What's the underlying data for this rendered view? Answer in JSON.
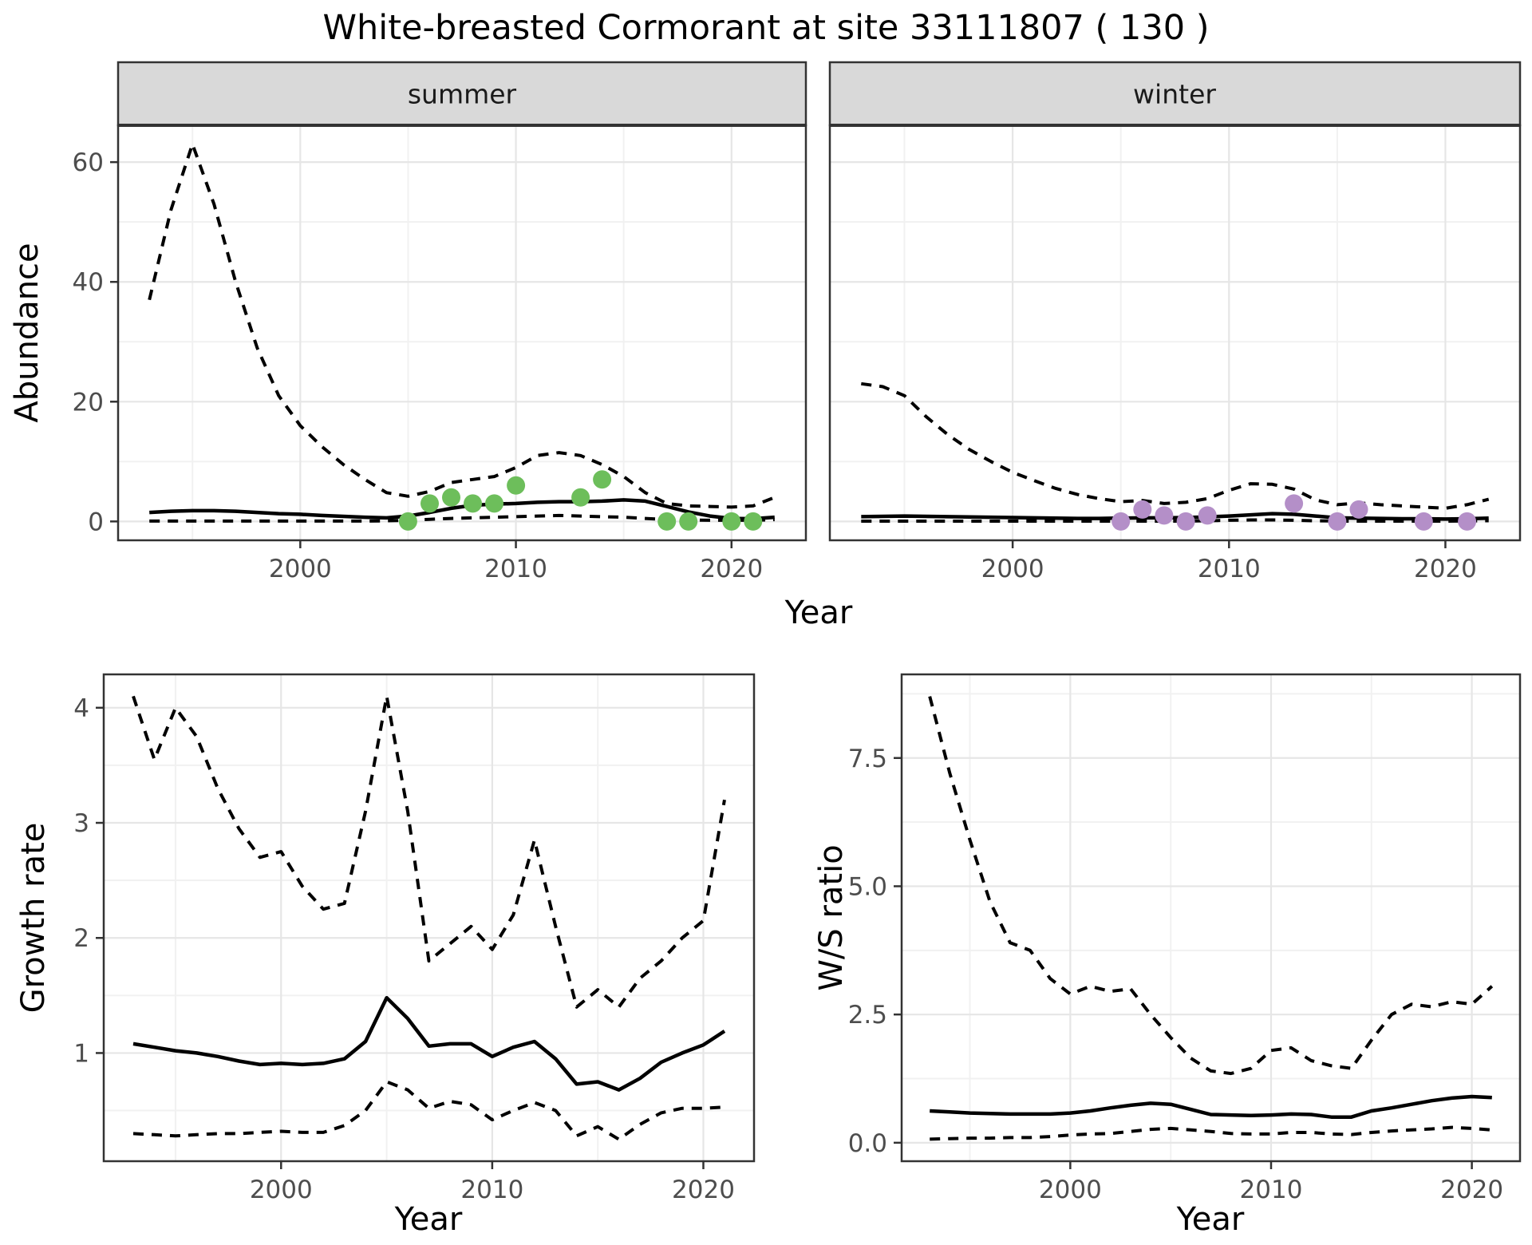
{
  "title": "White-breasted Cormorant at site 33111807 ( 130 )",
  "colors": {
    "summer_point": "#6dbe5b",
    "winter_point": "#b48fc8",
    "line": "#000000",
    "panel_bg": "#ffffff",
    "panel_border": "#333333",
    "grid_major": "#e6e6e6",
    "grid_minor": "#f1f1f1",
    "strip_bg": "#d9d9d9",
    "axis_text": "#4d4d4d",
    "tick_mark": "#333333"
  },
  "chart_data": [
    {
      "id": "abundance_summer",
      "type": "line",
      "facet": "summer",
      "ylabel": "Abundance",
      "xlabel": "Year",
      "xlim": [
        1991.55,
        2023.45
      ],
      "ylim": [
        -3.15,
        66.15
      ],
      "x_ticks": [
        2000,
        2010,
        2020
      ],
      "x_tick_labels": [
        "2000",
        "2010",
        "2020"
      ],
      "x_minor": [
        1995,
        2005,
        2015
      ],
      "y_ticks": [
        0,
        20,
        40,
        60
      ],
      "y_tick_labels": [
        "0",
        "20",
        "40",
        "60"
      ],
      "y_minor": [
        10,
        30,
        50
      ],
      "years": [
        1993,
        1994,
        1995,
        1996,
        1997,
        1998,
        1999,
        2000,
        2001,
        2002,
        2003,
        2004,
        2005,
        2006,
        2007,
        2008,
        2009,
        2010,
        2011,
        2012,
        2013,
        2014,
        2015,
        2016,
        2017,
        2018,
        2019,
        2020,
        2021,
        2022
      ],
      "series": [
        {
          "name": "upper_95ci",
          "style": "dashed",
          "values": [
            37,
            52,
            63,
            53,
            40,
            29,
            21,
            16,
            12.5,
            9.5,
            7,
            4.8,
            4.2,
            5,
            6.5,
            7,
            7.5,
            9,
            11,
            11.5,
            11,
            9.5,
            7.5,
            4.8,
            3,
            2.6,
            2.5,
            2.4,
            2.6,
            4
          ]
        },
        {
          "name": "mean",
          "style": "solid",
          "values": [
            1.5,
            1.7,
            1.8,
            1.8,
            1.7,
            1.5,
            1.3,
            1.2,
            1.0,
            0.85,
            0.7,
            0.6,
            0.9,
            1.5,
            2.2,
            2.7,
            2.9,
            3.0,
            3.2,
            3.3,
            3.3,
            3.4,
            3.6,
            3.4,
            2.5,
            1.6,
            0.9,
            0.5,
            0.45,
            0.7
          ]
        },
        {
          "name": "lower_95ci",
          "style": "dashed",
          "values": [
            0.06,
            0.06,
            0.06,
            0.06,
            0.06,
            0.06,
            0.06,
            0.06,
            0.06,
            0.06,
            0.06,
            0.1,
            0.2,
            0.35,
            0.5,
            0.6,
            0.7,
            0.8,
            0.9,
            1.0,
            0.9,
            0.8,
            0.7,
            0.5,
            0.3,
            0.25,
            0.2,
            0.2,
            0.2,
            0.3
          ]
        }
      ],
      "observations": {
        "color_key": "summer_point",
        "points": [
          [
            2005,
            0
          ],
          [
            2006,
            3
          ],
          [
            2007,
            4
          ],
          [
            2008,
            3
          ],
          [
            2009,
            3
          ],
          [
            2010,
            6
          ],
          [
            2013,
            4
          ],
          [
            2014,
            7
          ],
          [
            2017,
            0
          ],
          [
            2018,
            0
          ],
          [
            2020,
            0
          ],
          [
            2021,
            0
          ]
        ]
      }
    },
    {
      "id": "abundance_winter",
      "type": "line",
      "facet": "winter",
      "ylabel": "",
      "xlabel": "Year",
      "xlim": [
        1991.55,
        2023.45
      ],
      "ylim": [
        -3.15,
        66.15
      ],
      "x_ticks": [
        2000,
        2010,
        2020
      ],
      "x_tick_labels": [
        "2000",
        "2010",
        "2020"
      ],
      "x_minor": [
        1995,
        2005,
        2015
      ],
      "y_ticks": [
        0,
        20,
        40,
        60
      ],
      "y_tick_labels": [],
      "y_minor": [
        10,
        30,
        50
      ],
      "years": [
        1993,
        1994,
        1995,
        1996,
        1997,
        1998,
        1999,
        2000,
        2001,
        2002,
        2003,
        2004,
        2005,
        2006,
        2007,
        2008,
        2009,
        2010,
        2011,
        2012,
        2013,
        2014,
        2015,
        2016,
        2017,
        2018,
        2019,
        2020,
        2021,
        2022
      ],
      "series": [
        {
          "name": "upper_95ci",
          "style": "dashed",
          "values": [
            23,
            22.5,
            21,
            17.5,
            14.5,
            12,
            10,
            8.2,
            6.8,
            5.5,
            4.5,
            3.8,
            3.3,
            3.5,
            3.0,
            3.2,
            3.8,
            5.2,
            6.3,
            6.2,
            5.4,
            3.6,
            2.8,
            3.1,
            2.8,
            2.6,
            2.4,
            2.2,
            2.8,
            3.7
          ]
        },
        {
          "name": "mean",
          "style": "solid",
          "values": [
            0.8,
            0.85,
            0.9,
            0.85,
            0.8,
            0.75,
            0.7,
            0.65,
            0.6,
            0.55,
            0.5,
            0.5,
            0.55,
            0.6,
            0.6,
            0.65,
            0.75,
            0.9,
            1.1,
            1.3,
            1.2,
            0.9,
            0.6,
            0.55,
            0.5,
            0.45,
            0.45,
            0.4,
            0.45,
            0.55
          ]
        },
        {
          "name": "lower_95ci",
          "style": "dashed",
          "values": [
            0.05,
            0.05,
            0.05,
            0.05,
            0.05,
            0.05,
            0.05,
            0.05,
            0.05,
            0.05,
            0.05,
            0.05,
            0.05,
            0.05,
            0.05,
            0.06,
            0.1,
            0.2,
            0.25,
            0.25,
            0.2,
            0.1,
            0.06,
            0.05,
            0.05,
            0.05,
            0.05,
            0.05,
            0.08,
            0.12
          ]
        }
      ],
      "observations": {
        "color_key": "winter_point",
        "points": [
          [
            2005,
            0
          ],
          [
            2006,
            2
          ],
          [
            2007,
            1
          ],
          [
            2008,
            0
          ],
          [
            2009,
            1
          ],
          [
            2013,
            3
          ],
          [
            2015,
            0
          ],
          [
            2016,
            2
          ],
          [
            2019,
            0
          ],
          [
            2021,
            0
          ]
        ]
      }
    },
    {
      "id": "growth_rate",
      "type": "line",
      "facet": "",
      "ylabel": "Growth rate",
      "xlabel": "Year",
      "xlim": [
        1991.6,
        2022.4
      ],
      "ylim": [
        0.06,
        4.29
      ],
      "x_ticks": [
        2000,
        2010,
        2020
      ],
      "x_tick_labels": [
        "2000",
        "2010",
        "2020"
      ],
      "x_minor": [
        1995,
        2005,
        2015
      ],
      "y_ticks": [
        1,
        2,
        3,
        4
      ],
      "y_tick_labels": [
        "1",
        "2",
        "3",
        "4"
      ],
      "y_minor": [
        0.5,
        1.5,
        2.5,
        3.5
      ],
      "years": [
        1993,
        1994,
        1995,
        1996,
        1997,
        1998,
        1999,
        2000,
        2001,
        2002,
        2003,
        2004,
        2005,
        2006,
        2007,
        2008,
        2009,
        2010,
        2011,
        2012,
        2013,
        2014,
        2015,
        2016,
        2017,
        2018,
        2019,
        2020,
        2021
      ],
      "series": [
        {
          "name": "upper_95ci",
          "style": "dashed",
          "values": [
            4.1,
            3.55,
            4.0,
            3.75,
            3.3,
            2.95,
            2.7,
            2.75,
            2.45,
            2.25,
            2.3,
            3.1,
            4.1,
            3.1,
            1.8,
            1.95,
            2.1,
            1.9,
            2.2,
            2.85,
            2.1,
            1.4,
            1.55,
            1.4,
            1.65,
            1.8,
            2.0,
            2.15,
            3.2
          ]
        },
        {
          "name": "mean",
          "style": "solid",
          "values": [
            1.08,
            1.05,
            1.02,
            1.0,
            0.97,
            0.93,
            0.9,
            0.91,
            0.9,
            0.91,
            0.95,
            1.1,
            1.48,
            1.3,
            1.06,
            1.08,
            1.08,
            0.97,
            1.05,
            1.1,
            0.95,
            0.73,
            0.75,
            0.68,
            0.78,
            0.92,
            1.0,
            1.07,
            1.19
          ]
        },
        {
          "name": "lower_95ci",
          "style": "dashed",
          "values": [
            0.3,
            0.29,
            0.28,
            0.29,
            0.3,
            0.3,
            0.31,
            0.32,
            0.31,
            0.31,
            0.37,
            0.5,
            0.75,
            0.68,
            0.52,
            0.58,
            0.55,
            0.42,
            0.5,
            0.57,
            0.5,
            0.28,
            0.36,
            0.25,
            0.38,
            0.48,
            0.52,
            0.52,
            0.53
          ]
        }
      ],
      "observations": {
        "color_key": "",
        "points": []
      }
    },
    {
      "id": "ws_ratio",
      "type": "line",
      "facet": "",
      "ylabel": "W/S ratio",
      "xlabel": "Year",
      "xlim": [
        1991.6,
        2022.4
      ],
      "ylim": [
        -0.36,
        9.13
      ],
      "x_ticks": [
        2000,
        2010,
        2020
      ],
      "x_tick_labels": [
        "2000",
        "2010",
        "2020"
      ],
      "x_minor": [
        1995,
        2005,
        2015
      ],
      "y_ticks": [
        0,
        2.5,
        5,
        7.5
      ],
      "y_tick_labels": [
        "0.0",
        "2.5",
        "5.0",
        "7.5"
      ],
      "y_minor": [
        1.25,
        3.75,
        6.25,
        8.75
      ],
      "years": [
        1993,
        1994,
        1995,
        1996,
        1997,
        1998,
        1999,
        2000,
        2001,
        2002,
        2003,
        2004,
        2005,
        2006,
        2007,
        2008,
        2009,
        2010,
        2011,
        2012,
        2013,
        2014,
        2015,
        2016,
        2017,
        2018,
        2019,
        2020,
        2021
      ],
      "series": [
        {
          "name": "upper_95ci",
          "style": "dashed",
          "values": [
            8.7,
            7.2,
            5.9,
            4.7,
            3.9,
            3.75,
            3.2,
            2.9,
            3.05,
            2.95,
            3.0,
            2.5,
            2.05,
            1.65,
            1.4,
            1.35,
            1.45,
            1.8,
            1.85,
            1.6,
            1.5,
            1.45,
            2.0,
            2.5,
            2.7,
            2.65,
            2.75,
            2.7,
            3.05
          ]
        },
        {
          "name": "mean",
          "style": "solid",
          "values": [
            0.62,
            0.6,
            0.58,
            0.57,
            0.56,
            0.56,
            0.56,
            0.58,
            0.62,
            0.68,
            0.73,
            0.77,
            0.75,
            0.65,
            0.55,
            0.54,
            0.53,
            0.54,
            0.56,
            0.55,
            0.5,
            0.5,
            0.62,
            0.68,
            0.75,
            0.82,
            0.87,
            0.9,
            0.88
          ]
        },
        {
          "name": "lower_95ci",
          "style": "dashed",
          "values": [
            0.07,
            0.08,
            0.09,
            0.09,
            0.1,
            0.1,
            0.12,
            0.15,
            0.17,
            0.18,
            0.22,
            0.26,
            0.28,
            0.25,
            0.22,
            0.18,
            0.17,
            0.17,
            0.2,
            0.2,
            0.17,
            0.16,
            0.2,
            0.23,
            0.25,
            0.27,
            0.3,
            0.28,
            0.25
          ]
        }
      ],
      "observations": {
        "color_key": "",
        "points": []
      }
    }
  ]
}
